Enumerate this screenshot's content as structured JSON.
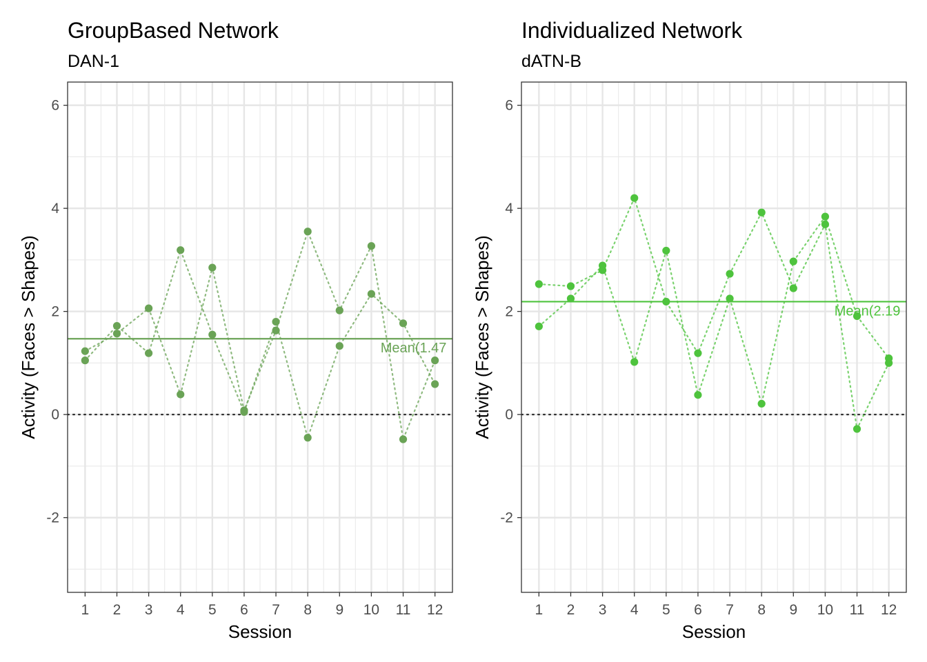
{
  "chart_data": [
    {
      "type": "scatter",
      "title": "GroupBased Network",
      "subtitle": "DAN-1",
      "xlabel": "Session",
      "ylabel": "Activity (Faces > Shapes)",
      "x_ticks": [
        1,
        2,
        3,
        4,
        5,
        6,
        7,
        8,
        9,
        10,
        11,
        12
      ],
      "y_ticks": [
        -2,
        0,
        2,
        4,
        6
      ],
      "xlim": [
        0.45,
        12.55
      ],
      "ylim": [
        -3.45,
        6.45
      ],
      "grid": true,
      "color": "#6aa356",
      "reference_line": {
        "y": 0,
        "style": "dotted",
        "color": "#333333"
      },
      "mean": {
        "value": 1.47,
        "label": "Mean(1.47"
      },
      "series": [
        {
          "x": [
            1,
            2,
            3,
            4,
            5,
            6,
            7,
            8,
            9,
            10,
            11,
            12
          ],
          "y": [
            1.05,
            1.72,
            1.19,
            3.19,
            1.55,
            0.05,
            1.8,
            -0.45,
            1.33,
            2.34,
            1.77,
            0.59
          ]
        },
        {
          "x": [
            1,
            2,
            3,
            4,
            5,
            6,
            7,
            8,
            9,
            10,
            11,
            12
          ],
          "y": [
            1.23,
            1.57,
            2.06,
            0.39,
            2.85,
            0.08,
            1.63,
            3.55,
            2.02,
            3.27,
            -0.48,
            1.05
          ]
        }
      ]
    },
    {
      "type": "scatter",
      "title": "Individualized Network",
      "subtitle": "dATN-B",
      "xlabel": "Session",
      "ylabel": "Activity (Faces > Shapes)",
      "x_ticks": [
        1,
        2,
        3,
        4,
        5,
        6,
        7,
        8,
        9,
        10,
        11,
        12
      ],
      "y_ticks": [
        -2,
        0,
        2,
        4,
        6
      ],
      "xlim": [
        0.45,
        12.55
      ],
      "ylim": [
        -3.45,
        6.45
      ],
      "grid": true,
      "color": "#4ec33d",
      "reference_line": {
        "y": 0,
        "style": "dotted",
        "color": "#333333"
      },
      "mean": {
        "value": 2.19,
        "label": "Mean(2.19"
      },
      "series": [
        {
          "x": [
            1,
            2,
            3,
            4,
            5,
            6,
            7,
            8,
            9,
            10,
            11,
            12
          ],
          "y": [
            2.53,
            2.49,
            2.8,
            4.2,
            2.19,
            1.19,
            2.73,
            3.92,
            2.45,
            3.69,
            -0.28,
            1.0
          ]
        },
        {
          "x": [
            1,
            2,
            3,
            4,
            5,
            6,
            7,
            8,
            9,
            10,
            11,
            12
          ],
          "y": [
            1.71,
            2.25,
            2.89,
            1.02,
            3.18,
            0.38,
            2.25,
            0.21,
            2.97,
            3.84,
            1.91,
            1.09
          ]
        }
      ]
    }
  ]
}
